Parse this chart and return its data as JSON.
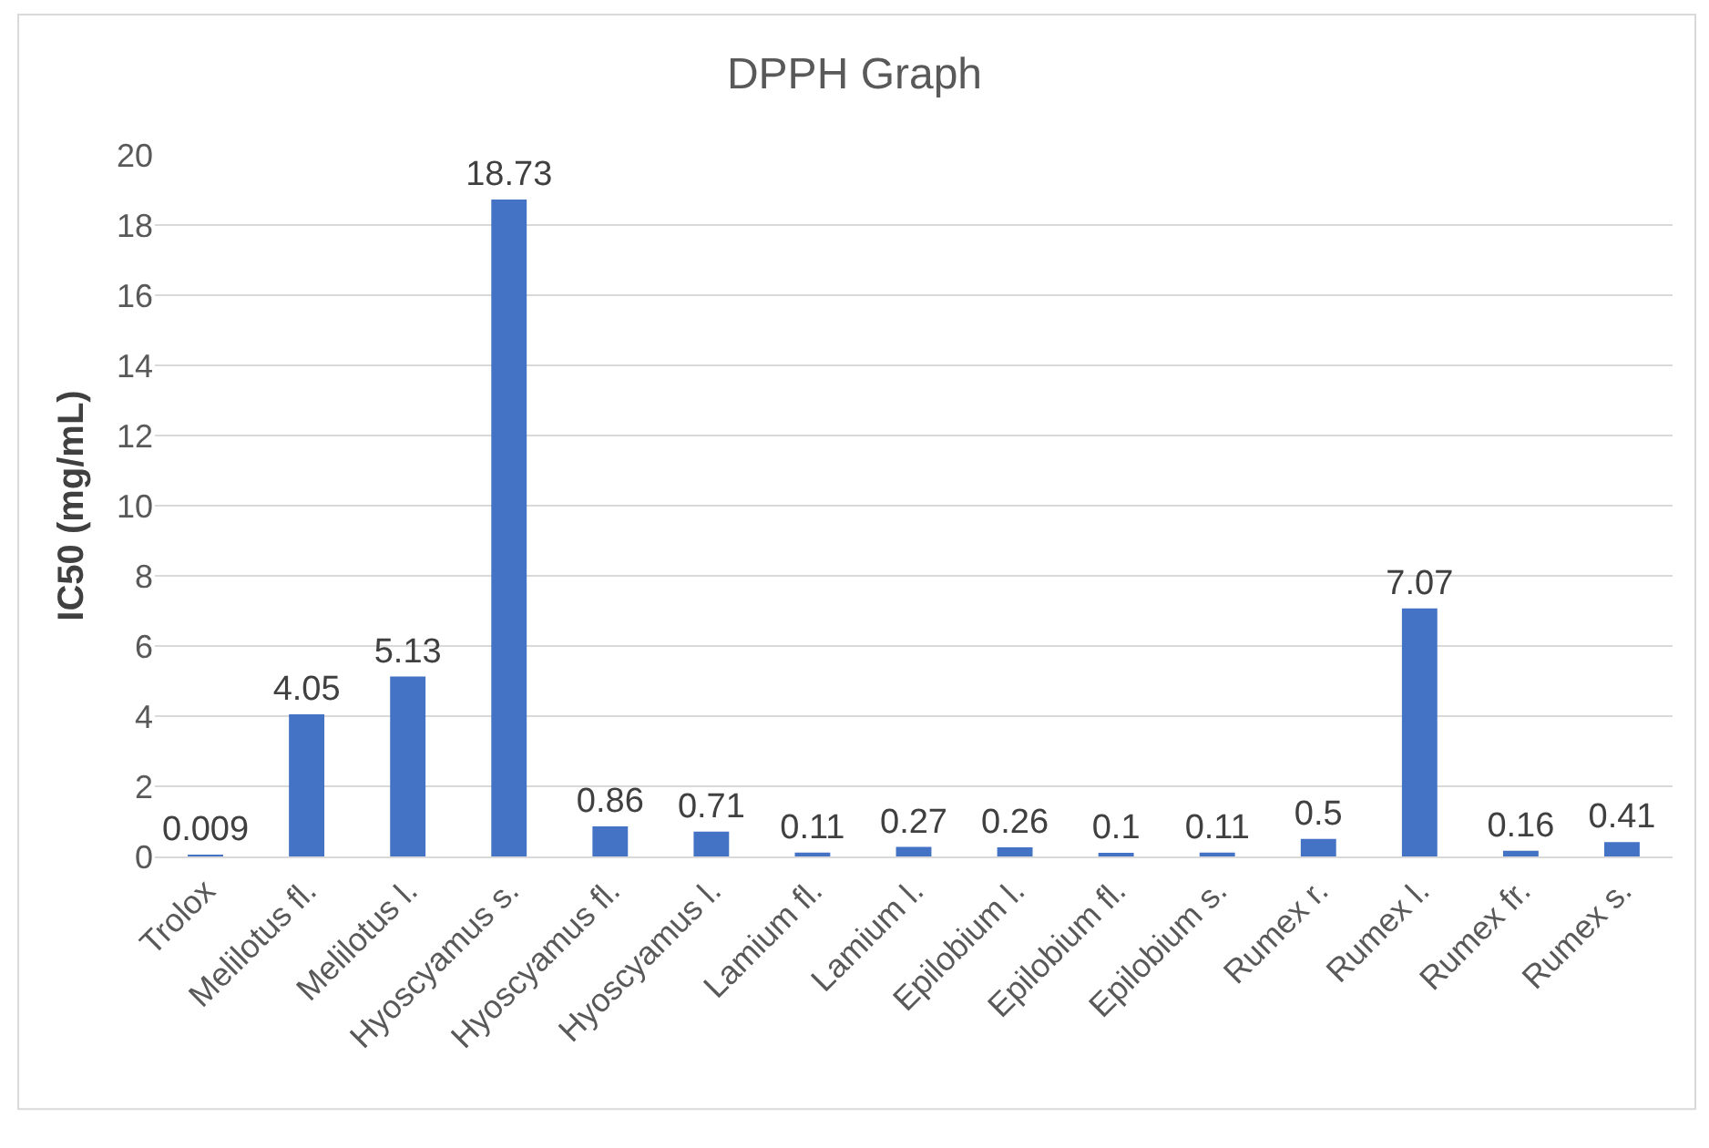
{
  "chart_data": {
    "type": "bar",
    "title": "DPPH Graph",
    "ylabel": "IC50 (mg/mL)",
    "categories": [
      "Trolox",
      "Melilotus fl.",
      "Melilotus l.",
      "Hyoscyamus s.",
      "Hyoscyamus fl.",
      "Hyoscyamus l.",
      "Lamium fl.",
      "Lamium l.",
      "Epilobium l.",
      "Epilobium fl.",
      "Epilobium s.",
      "Rumex r.",
      "Rumex l.",
      "Rumex fr.",
      "Rumex s."
    ],
    "values": [
      0.009,
      4.05,
      5.13,
      18.73,
      0.86,
      0.71,
      0.11,
      0.27,
      0.26,
      0.1,
      0.11,
      0.5,
      7.07,
      0.16,
      0.41
    ],
    "color": "#4472c4",
    "ylim": [
      0,
      20
    ],
    "yticks": [
      0,
      2,
      4,
      6,
      8,
      10,
      12,
      14,
      16,
      18,
      20
    ],
    "grid": "y",
    "data_labels": true
  }
}
